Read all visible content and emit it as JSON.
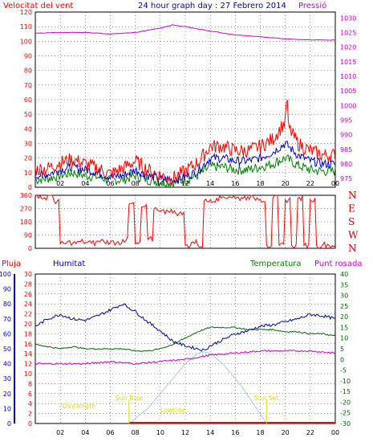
{
  "header": {
    "title": "24 hour graph day : 27 Febrero 2014",
    "left_label": "Velocitat del vent",
    "right_label": "Pressió"
  },
  "legend_bottom": {
    "rain": "Pluja",
    "humidity": "Humitat",
    "temperature": "Temperatura",
    "dewpoint": "Punt rosada"
  },
  "colors": {
    "wind_gust": "#ff0000",
    "wind_avg": "#0000cc",
    "wind_green": "#008000",
    "pressure": "#cc00cc",
    "direction": "#ff0000",
    "humidity": "#0000aa",
    "temperature": "#006600",
    "dewpoint": "#cc00cc",
    "solar": "#aaccee",
    "rain": "#ff0000",
    "annotation": "#dddd00",
    "grid": "#000000",
    "right_axis_pressure": "#cc00cc",
    "right_axis_temp": "#006600"
  },
  "chart_data": [
    {
      "type": "line",
      "name": "wind",
      "x_ticks": [
        "02",
        "04",
        "06",
        "08",
        "10",
        "12",
        "14",
        "16",
        "18",
        "20",
        "22",
        "00"
      ],
      "y_left_ticks": [
        "0",
        "10",
        "20",
        "30",
        "40",
        "50",
        "60",
        "70",
        "80",
        "90",
        "100",
        "110",
        "120"
      ],
      "y_left_range": [
        0,
        120
      ],
      "y_right_ticks": [
        "975",
        "980",
        "985",
        "990",
        "995",
        "1000",
        "1005",
        "1010",
        "1015",
        "1020",
        "1025",
        "1030"
      ],
      "y_right_range": [
        972,
        1032
      ],
      "grid": true,
      "series": [
        {
          "key": "gust",
          "hours": [
            0,
            1,
            2,
            3,
            4,
            5,
            6,
            7,
            8,
            9,
            10,
            11,
            12,
            13,
            14,
            15,
            16,
            17,
            18,
            19,
            20,
            21,
            22,
            23,
            24
          ],
          "values": [
            12,
            13,
            17,
            19,
            16,
            13,
            9,
            13,
            18,
            12,
            8,
            6,
            11,
            17,
            28,
            28,
            25,
            25,
            28,
            33,
            45,
            30,
            25,
            22,
            22
          ]
        },
        {
          "key": "avg",
          "hours": [
            0,
            1,
            2,
            3,
            4,
            5,
            6,
            7,
            8,
            9,
            10,
            11,
            12,
            13,
            14,
            15,
            16,
            17,
            18,
            19,
            20,
            21,
            22,
            23,
            24
          ],
          "values": [
            8,
            9,
            12,
            14,
            12,
            10,
            7,
            8,
            12,
            8,
            6,
            5,
            7,
            11,
            20,
            20,
            18,
            18,
            20,
            24,
            30,
            22,
            18,
            16,
            16
          ]
        },
        {
          "key": "green",
          "hours": [
            0,
            1,
            2,
            3,
            4,
            5,
            6,
            7,
            8,
            9,
            10,
            11,
            12,
            13,
            14,
            15,
            16,
            17,
            18,
            19,
            20,
            21,
            22,
            23,
            24
          ],
          "values": [
            5,
            6,
            8,
            10,
            8,
            7,
            5,
            5,
            8,
            5,
            4,
            3,
            5,
            8,
            14,
            14,
            12,
            12,
            14,
            16,
            20,
            15,
            12,
            11,
            11
          ]
        },
        {
          "key": "pressure",
          "hours": [
            0,
            2,
            4,
            6,
            8,
            10,
            11,
            12,
            14,
            16,
            18,
            20,
            22,
            24
          ],
          "values": [
            1024.8,
            1025,
            1025,
            1024.5,
            1025,
            1026.5,
            1027.6,
            1027,
            1025.5,
            1024.2,
            1023.5,
            1022.8,
            1022.5,
            1022.4
          ]
        }
      ]
    },
    {
      "type": "line",
      "name": "wind-direction",
      "x_ticks": [
        "02",
        "04",
        "06",
        "08",
        "10",
        "12",
        "14",
        "16",
        "18",
        "20",
        "22",
        "00"
      ],
      "y_ticks": [
        "0",
        "90",
        "180",
        "270",
        "360"
      ],
      "y_range": [
        0,
        360
      ],
      "right_labels": [
        "N",
        "W",
        "S",
        "E",
        "N"
      ],
      "grid": true,
      "series": [
        {
          "key": "direction",
          "hours": [
            0,
            0.5,
            1,
            1.5,
            2,
            2.5,
            3,
            3.5,
            4,
            4.5,
            5,
            5.5,
            6,
            6.5,
            7,
            7.5,
            8,
            8.5,
            9,
            9.5,
            10,
            10.5,
            11,
            11.5,
            12,
            12.5,
            13,
            13.5,
            14,
            14.5,
            15,
            15.5,
            16,
            16.5,
            17,
            17.5,
            18,
            18.5,
            19,
            19.5,
            20,
            20.5,
            21,
            21.5,
            22,
            22.5,
            23,
            23.5,
            24
          ],
          "values": [
            360,
            340,
            360,
            320,
            30,
            40,
            35,
            45,
            40,
            35,
            50,
            45,
            40,
            40,
            60,
            300,
            30,
            280,
            60,
            270,
            250,
            260,
            240,
            235,
            20,
            40,
            20,
            320,
            330,
            340,
            350,
            350,
            340,
            345,
            350,
            340,
            330,
            20,
            340,
            20,
            330,
            20,
            340,
            20,
            330,
            20,
            25,
            20,
            20
          ]
        }
      ]
    },
    {
      "type": "line",
      "name": "humidity-temperature",
      "x_ticks": [
        "02",
        "04",
        "06",
        "08",
        "10",
        "12",
        "14",
        "16",
        "18",
        "20",
        "22",
        "00"
      ],
      "y_hum_ticks": [
        "0",
        "10",
        "20",
        "30",
        "40",
        "50",
        "60",
        "70",
        "80",
        "90",
        "100"
      ],
      "y_rain_ticks": [
        "0",
        "2",
        "4",
        "6",
        "8",
        "10",
        "12",
        "14",
        "16",
        "18",
        "20",
        "22",
        "24",
        "26",
        "28",
        "30"
      ],
      "y_temp_ticks": [
        "-30",
        "-25",
        "-20",
        "-15",
        "-10",
        "-5",
        "0",
        "5",
        "10",
        "15",
        "20",
        "25",
        "30",
        "35",
        "40"
      ],
      "y_temp_range": [
        -30,
        40
      ],
      "annotations": {
        "sunrise_label": "Sun Rise",
        "sunset_label": "Sun Set",
        "daylength_label": "Daylength",
        "lowtide_label": "Lowtide",
        "sunrise_hour": 7.5,
        "sunset_hour": 18.5
      },
      "grid": true,
      "series": [
        {
          "key": "humidity",
          "hours": [
            0,
            1,
            2,
            3,
            4,
            5,
            6,
            7,
            8,
            9,
            10,
            11,
            12,
            13,
            13.5,
            14,
            15,
            16,
            17,
            18,
            19,
            20,
            21,
            22,
            23,
            24
          ],
          "values": [
            65,
            70,
            73,
            70,
            69,
            72,
            76,
            80,
            75,
            68,
            62,
            55,
            52,
            50,
            49,
            52,
            56,
            60,
            62,
            65,
            66,
            68,
            70,
            73,
            72,
            70
          ]
        },
        {
          "key": "temperature",
          "hours": [
            0,
            1,
            2,
            3,
            4,
            5,
            6,
            7,
            8,
            9,
            10,
            11,
            12,
            13,
            14,
            15,
            16,
            17,
            18,
            19,
            20,
            21,
            22,
            23,
            24
          ],
          "values": [
            7,
            6,
            5,
            6,
            5,
            5,
            5,
            5,
            4,
            4,
            5,
            7,
            10,
            13,
            15,
            15,
            15,
            14,
            14,
            14,
            13,
            13,
            12,
            12,
            11
          ]
        },
        {
          "key": "dewpoint",
          "hours": [
            0,
            2,
            4,
            6,
            8,
            10,
            12,
            14,
            16,
            18,
            20,
            22,
            24
          ],
          "values": [
            -2,
            -2,
            -2,
            -1,
            -2,
            -1,
            0,
            2,
            3,
            4,
            4,
            4,
            3
          ]
        },
        {
          "key": "solar",
          "hours": [
            7.5,
            9,
            10.5,
            12,
            13,
            13.5,
            14,
            15,
            16.5,
            18.5
          ],
          "values": [
            0,
            10,
            25,
            40,
            47,
            48,
            47,
            40,
            25,
            0
          ]
        },
        {
          "key": "rain",
          "hours": [
            7.5,
            24
          ],
          "values": [
            0,
            0
          ]
        }
      ]
    }
  ]
}
